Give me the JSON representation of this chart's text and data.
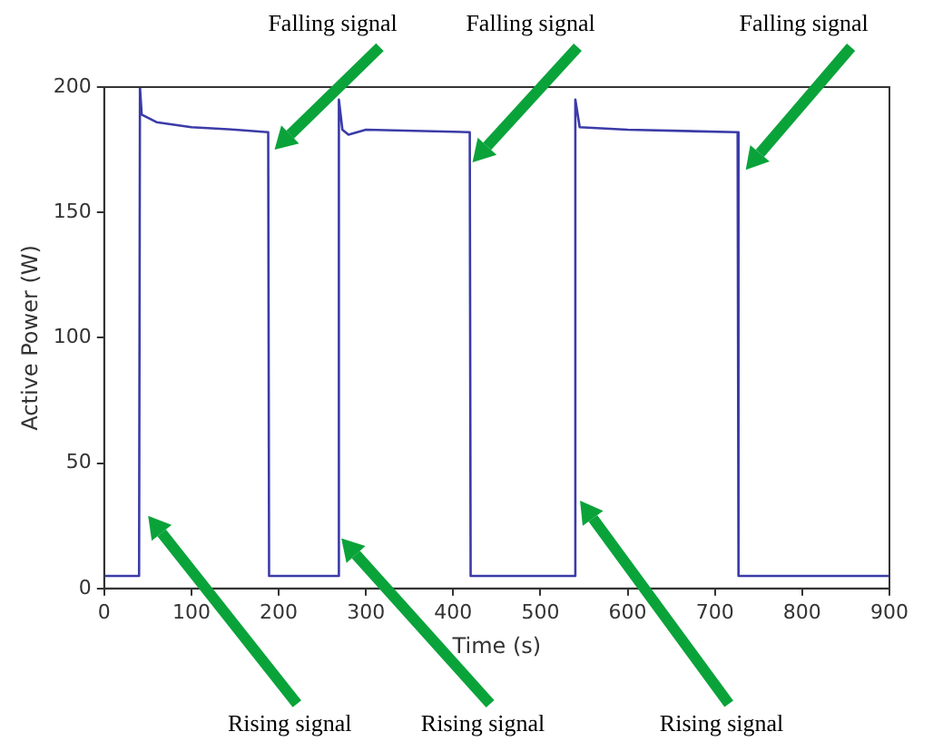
{
  "chart_data": {
    "type": "line",
    "xlabel": "Time (s)",
    "ylabel": "Active Power (W)",
    "x": [
      0,
      40,
      41,
      43,
      60,
      100,
      150,
      188,
      189,
      268,
      269,
      273,
      280,
      300,
      419,
      420,
      539,
      540,
      545,
      600,
      726,
      727,
      900
    ],
    "series": [
      {
        "color": "#3b3ba8",
        "values": [
          5,
          5,
          200,
          189,
          186,
          184,
          183,
          182,
          5,
          5,
          195,
          183,
          181,
          183,
          182,
          5,
          5,
          195,
          184,
          183,
          182,
          5,
          5
        ]
      }
    ],
    "xlim": [
      0,
      900
    ],
    "xticks": [
      0,
      100,
      200,
      300,
      400,
      500,
      600,
      700,
      800,
      900
    ],
    "ylim": [
      0,
      200
    ],
    "yticks": [
      0,
      50,
      100,
      150,
      200
    ],
    "grid": false,
    "legend": false,
    "marker": "none",
    "line_style": "solid",
    "annotations": [
      "Falling signal",
      "Falling signal",
      "Falling signal",
      "Rising signal",
      "Rising signal",
      "Rising signal"
    ]
  }
}
